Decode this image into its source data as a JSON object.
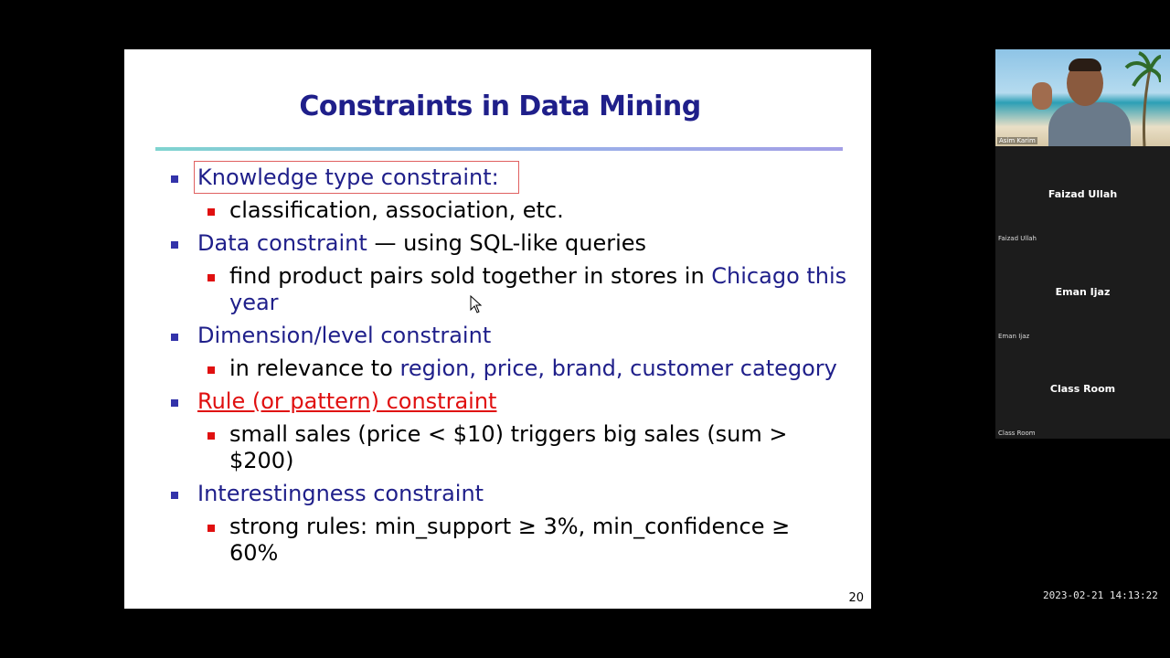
{
  "slide": {
    "title": "Constraints in Data Mining",
    "page_number": "20",
    "items": [
      {
        "label": "Knowledge type constraint:",
        "subs": [
          {
            "parts": [
              "classification, association, etc."
            ]
          }
        ]
      },
      {
        "label_main": "Data constraint",
        "label_rest": " — using SQL-like queries",
        "subs": [
          {
            "part1": "find product pairs sold together in stores in ",
            "part2": "Chicago this",
            "line2": "year"
          }
        ]
      },
      {
        "label": "Dimension/level constraint",
        "subs": [
          {
            "part1": "in relevance to ",
            "part2": "region, price, brand, customer category"
          }
        ]
      },
      {
        "label": "Rule (or pattern) constraint",
        "subs": [
          {
            "line1": "small sales (price < $10) triggers big sales (sum >",
            "line2": "$200)"
          }
        ]
      },
      {
        "label": "Interestingness constraint",
        "subs": [
          {
            "line1": "strong rules: min_support ≥ 3%, min_confidence ≥",
            "line2": "60%"
          }
        ]
      }
    ]
  },
  "video_panel": {
    "presenter_label": "Asim Karim",
    "participants": [
      {
        "name": "Faizad Ullah",
        "sub": "Faizad Ullah"
      },
      {
        "name": "Eman Ijaz",
        "sub": "Eman Ijaz"
      },
      {
        "name": "Class Room",
        "sub": "Class Room"
      }
    ]
  },
  "timestamp": "2023-02-21  14:13:22",
  "colors": {
    "navy_text": "#1f1f8a",
    "red_accent": "#e01010",
    "background": "#000000"
  }
}
